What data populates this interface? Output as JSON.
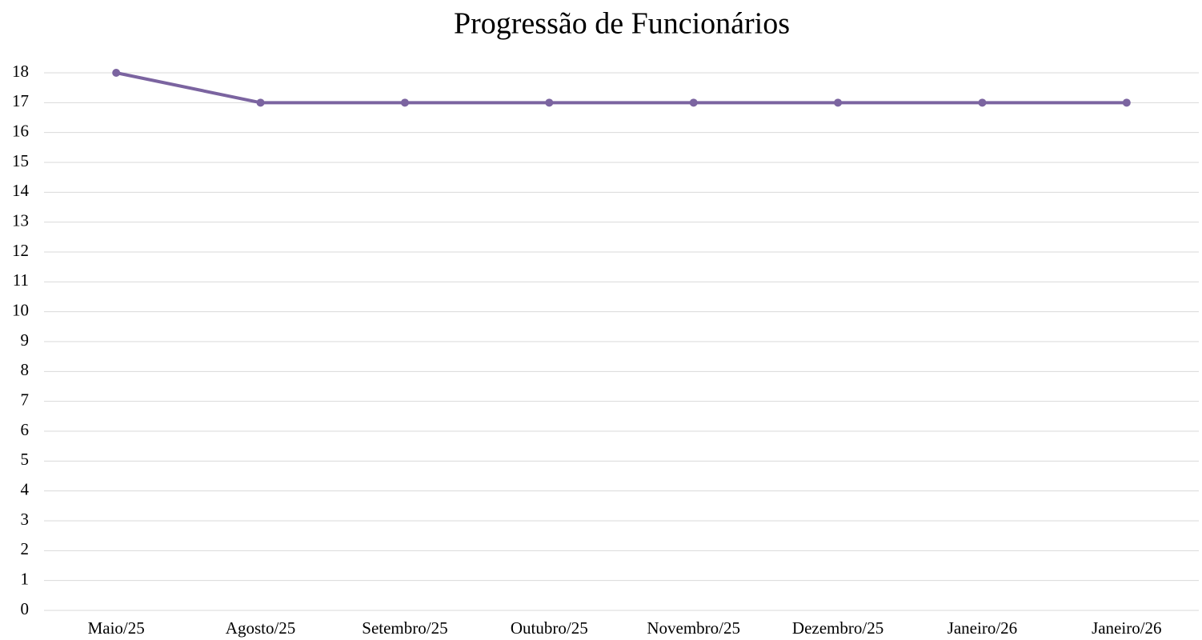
{
  "chart_data": {
    "type": "line",
    "title": "Progressão de Funcionários",
    "categories": [
      "Maio/25",
      "Agosto/25",
      "Setembro/25",
      "Outubro/25",
      "Novembro/25",
      "Dezembro/25",
      "Janeiro/26",
      "Janeiro/26"
    ],
    "values": [
      18,
      17,
      17,
      17,
      17,
      17,
      17,
      17
    ],
    "color": "#7b64a0",
    "ylim": [
      0,
      18
    ],
    "yticks": [
      0,
      1,
      2,
      3,
      4,
      5,
      6,
      7,
      8,
      9,
      10,
      11,
      12,
      13,
      14,
      15,
      16,
      17,
      18
    ],
    "grid": true
  }
}
